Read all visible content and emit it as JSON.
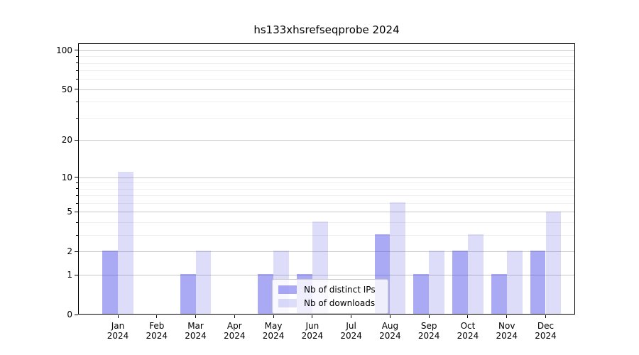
{
  "chart_data": {
    "type": "bar",
    "title": "hs133xhsrefseqprobe 2024",
    "categories": [
      "Jan 2024",
      "Feb 2024",
      "Mar 2024",
      "Apr 2024",
      "May 2024",
      "Jun 2024",
      "Jul 2024",
      "Aug 2024",
      "Sep 2024",
      "Oct 2024",
      "Nov 2024",
      "Dec 2024"
    ],
    "series": [
      {
        "name": "Nb of distinct IPs",
        "color": "rgba(64,64,230,0.45)",
        "values": [
          2,
          0,
          1,
          0,
          1,
          1,
          0,
          3,
          1,
          2,
          1,
          2
        ]
      },
      {
        "name": "Nb of downloads",
        "color": "rgba(64,64,230,0.18)",
        "values": [
          11,
          0,
          2,
          0,
          2,
          4,
          0,
          6,
          2,
          3,
          2,
          5
        ]
      }
    ],
    "xlabel": "",
    "ylabel": "",
    "y_scale": "log10(1+value)",
    "y_ticks": [
      0,
      1,
      2,
      5,
      10,
      20,
      50,
      100
    ],
    "y_minor_ticks": [
      3,
      4,
      6,
      7,
      8,
      9,
      30,
      40,
      60,
      70,
      80,
      90
    ],
    "ylim": [
      0,
      113
    ],
    "grid": true,
    "legend_position": "lower center"
  },
  "colors": {
    "major_grid": "#c8c8c8",
    "minor_grid": "#eeeeee",
    "axis": "#000000",
    "background": "#ffffff"
  }
}
